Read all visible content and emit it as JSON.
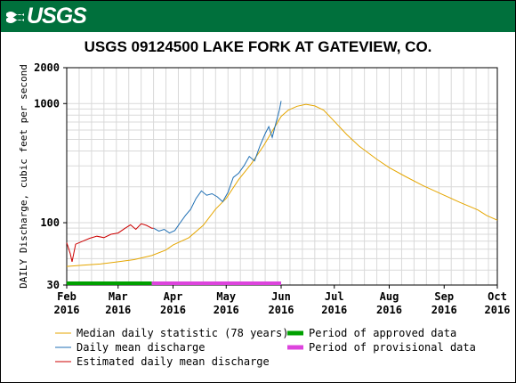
{
  "header": {
    "logo_text": "USGS",
    "brand_color": "#00703c"
  },
  "chart_data": {
    "type": "line",
    "title": "USGS 09124500 LAKE FORK AT GATEVIEW, CO.",
    "ylabel": "DAILY Discharge, cubic feet per second",
    "y_scale": "log",
    "ylim": [
      30,
      2000
    ],
    "y_ticks": [
      {
        "value": 30,
        "label": "30"
      },
      {
        "value": 100,
        "label": "100"
      },
      {
        "value": 1000,
        "label": "1000"
      },
      {
        "value": 2000,
        "label": "2000"
      }
    ],
    "xlim": [
      "2016-02-01",
      "2016-10-01"
    ],
    "x_ticks": [
      {
        "date": "2016-02-01",
        "label": "Feb",
        "year": "2016"
      },
      {
        "date": "2016-03-01",
        "label": "Mar",
        "year": "2016"
      },
      {
        "date": "2016-04-01",
        "label": "Apr",
        "year": "2016"
      },
      {
        "date": "2016-05-01",
        "label": "May",
        "year": "2016"
      },
      {
        "date": "2016-06-01",
        "label": "Jun",
        "year": "2016"
      },
      {
        "date": "2016-07-01",
        "label": "Jul",
        "year": "2016"
      },
      {
        "date": "2016-08-01",
        "label": "Aug",
        "year": "2016"
      },
      {
        "date": "2016-09-01",
        "label": "Sep",
        "year": "2016"
      },
      {
        "date": "2016-10-01",
        "label": "Oct",
        "year": "2016"
      }
    ],
    "grid": true,
    "series": [
      {
        "name": "Median daily statistic (78 years)",
        "color": "#e5a600",
        "points": [
          [
            "2016-02-01",
            43
          ],
          [
            "2016-02-10",
            44
          ],
          [
            "2016-02-20",
            45
          ],
          [
            "2016-03-01",
            47
          ],
          [
            "2016-03-10",
            49
          ],
          [
            "2016-03-20",
            53
          ],
          [
            "2016-03-28",
            59
          ],
          [
            "2016-04-01",
            65
          ],
          [
            "2016-04-10",
            75
          ],
          [
            "2016-04-18",
            95
          ],
          [
            "2016-04-25",
            130
          ],
          [
            "2016-05-01",
            160
          ],
          [
            "2016-05-08",
            230
          ],
          [
            "2016-05-15",
            310
          ],
          [
            "2016-05-22",
            440
          ],
          [
            "2016-05-28",
            620
          ],
          [
            "2016-06-01",
            780
          ],
          [
            "2016-06-05",
            880
          ],
          [
            "2016-06-10",
            950
          ],
          [
            "2016-06-15",
            985
          ],
          [
            "2016-06-20",
            955
          ],
          [
            "2016-06-25",
            880
          ],
          [
            "2016-07-01",
            710
          ],
          [
            "2016-07-08",
            550
          ],
          [
            "2016-07-15",
            440
          ],
          [
            "2016-07-25",
            340
          ],
          [
            "2016-08-01",
            290
          ],
          [
            "2016-08-10",
            245
          ],
          [
            "2016-08-20",
            205
          ],
          [
            "2016-09-01",
            170
          ],
          [
            "2016-09-10",
            148
          ],
          [
            "2016-09-20",
            128
          ],
          [
            "2016-09-25",
            115
          ],
          [
            "2016-10-01",
            105
          ]
        ]
      },
      {
        "name": "Daily mean discharge",
        "color": "#1f6fb4",
        "points": [
          [
            "2016-03-21",
            90
          ],
          [
            "2016-03-24",
            85
          ],
          [
            "2016-03-27",
            88
          ],
          [
            "2016-03-30",
            82
          ],
          [
            "2016-04-02",
            86
          ],
          [
            "2016-04-05",
            100
          ],
          [
            "2016-04-08",
            115
          ],
          [
            "2016-04-11",
            130
          ],
          [
            "2016-04-14",
            160
          ],
          [
            "2016-04-17",
            185
          ],
          [
            "2016-04-20",
            170
          ],
          [
            "2016-04-23",
            175
          ],
          [
            "2016-04-26",
            165
          ],
          [
            "2016-04-29",
            150
          ],
          [
            "2016-05-02",
            180
          ],
          [
            "2016-05-05",
            240
          ],
          [
            "2016-05-08",
            260
          ],
          [
            "2016-05-11",
            300
          ],
          [
            "2016-05-14",
            360
          ],
          [
            "2016-05-17",
            330
          ],
          [
            "2016-05-20",
            440
          ],
          [
            "2016-05-23",
            560
          ],
          [
            "2016-05-25",
            640
          ],
          [
            "2016-05-27",
            520
          ],
          [
            "2016-05-29",
            680
          ],
          [
            "2016-05-31",
            880
          ],
          [
            "2016-06-01",
            1050
          ]
        ]
      },
      {
        "name": "Estimated daily mean discharge",
        "color": "#cc0000",
        "points": [
          [
            "2016-02-01",
            68
          ],
          [
            "2016-02-03",
            55
          ],
          [
            "2016-02-04",
            47
          ],
          [
            "2016-02-06",
            66
          ],
          [
            "2016-02-10",
            70
          ],
          [
            "2016-02-14",
            74
          ],
          [
            "2016-02-18",
            77
          ],
          [
            "2016-02-22",
            75
          ],
          [
            "2016-02-26",
            80
          ],
          [
            "2016-03-01",
            82
          ],
          [
            "2016-03-05",
            90
          ],
          [
            "2016-03-08",
            96
          ],
          [
            "2016-03-11",
            88
          ],
          [
            "2016-03-14",
            98
          ],
          [
            "2016-03-17",
            95
          ],
          [
            "2016-03-20",
            90
          ],
          [
            "2016-03-21",
            90
          ]
        ]
      }
    ],
    "periods": [
      {
        "name": "Period of approved data",
        "color": "#00a000",
        "start": "2016-02-01",
        "end": "2016-03-20"
      },
      {
        "name": "Period of provisional data",
        "color": "#dd44dd",
        "start": "2016-03-20",
        "end": "2016-06-01"
      }
    ],
    "legend_placement": "bottom"
  }
}
